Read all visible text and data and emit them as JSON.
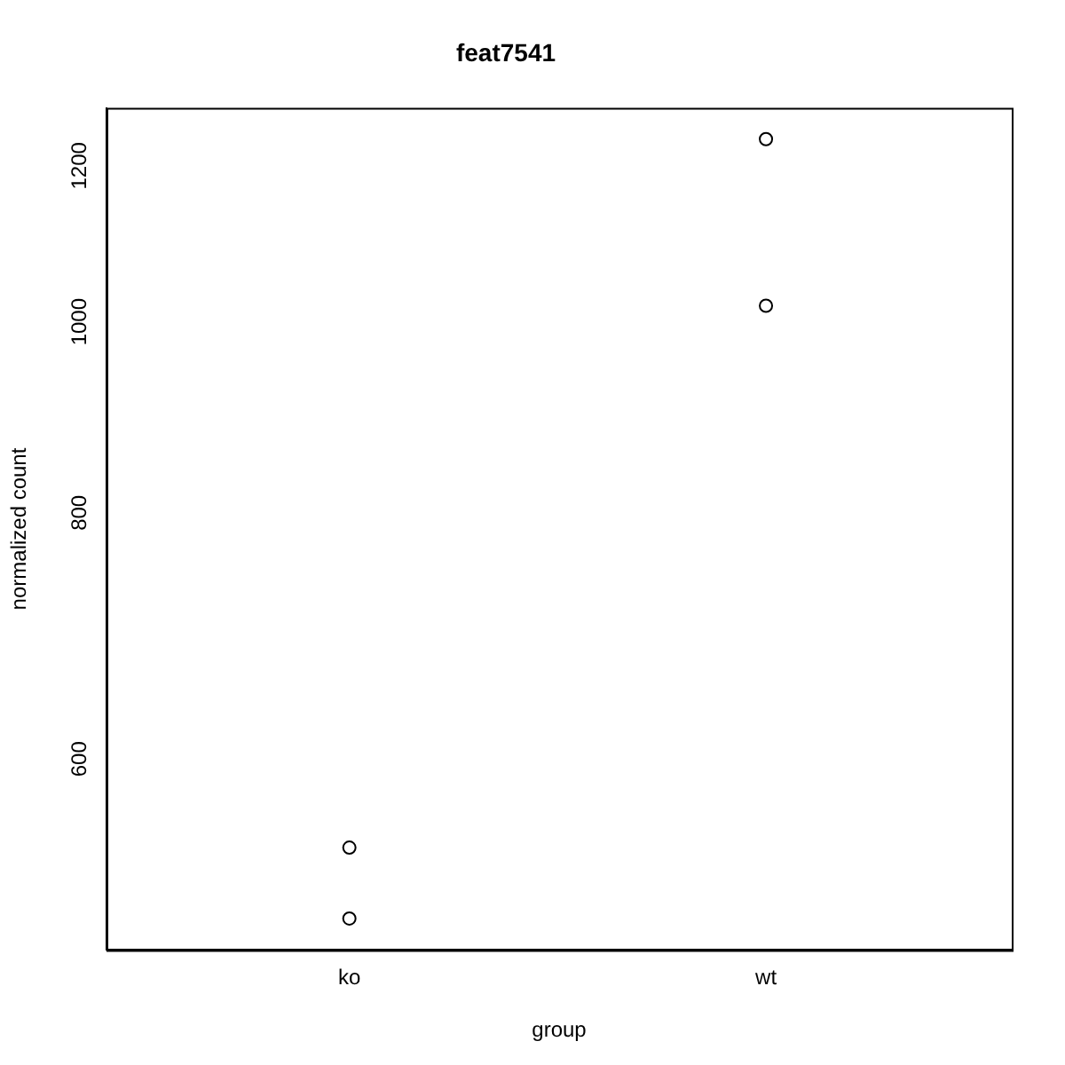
{
  "chart_data": {
    "type": "scatter",
    "title": "feat7541",
    "xlabel": "group",
    "ylabel": "normalized count",
    "categories": [
      "ko",
      "wt"
    ],
    "log": "y",
    "ylim": [
      480,
      1284
    ],
    "yticks": [
      600,
      800,
      1000,
      1200
    ],
    "grid": false,
    "legend": false,
    "marker": "circle",
    "series": [
      {
        "color": "#000000",
        "x": [
          "ko",
          "ko",
          "wt",
          "wt"
        ],
        "values": [
          498,
          541,
          1238,
          1019
        ]
      }
    ]
  }
}
